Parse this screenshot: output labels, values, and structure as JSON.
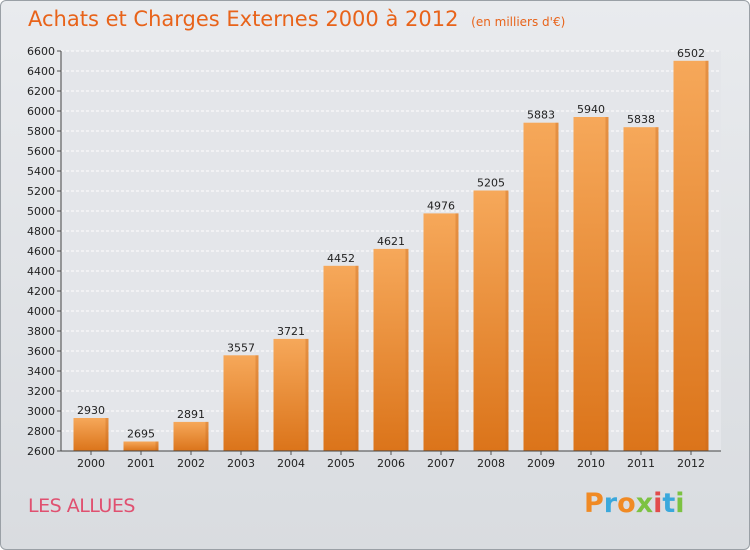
{
  "header": {
    "title": "Achats et Charges Externes 2000 à 2012",
    "unit": "(en milliers d'€)"
  },
  "footer": {
    "commune": "LES ALLUES",
    "logo": [
      "P",
      "r",
      "o",
      "x",
      "i",
      "t",
      "i"
    ],
    "logo_colors": [
      "#f08a24",
      "#3aa8dc",
      "#f08a24",
      "#7cc242",
      "#e24b4b",
      "#3aa8dc",
      "#7cc242"
    ]
  },
  "colors": {
    "bar_top": "#f6a85a",
    "bar_bottom": "#db741a",
    "bar_side": "#c7661c",
    "title": "#e8631a",
    "commune": "#e05070"
  },
  "chart_data": {
    "type": "bar",
    "categories": [
      "2000",
      "2001",
      "2002",
      "2003",
      "2004",
      "2005",
      "2006",
      "2007",
      "2008",
      "2009",
      "2010",
      "2011",
      "2012"
    ],
    "values": [
      2930,
      2695,
      2891,
      3557,
      3721,
      4452,
      4621,
      4976,
      5205,
      5883,
      5940,
      5838,
      6502
    ],
    "title": "Achats et Charges Externes 2000 à 2012",
    "ylim": [
      2600,
      6600
    ],
    "yticks": [
      2600,
      2800,
      3000,
      3200,
      3400,
      3600,
      3800,
      4000,
      4200,
      4400,
      4600,
      4800,
      5000,
      5200,
      5400,
      5600,
      5800,
      6000,
      6200,
      6400,
      6600
    ],
    "grid": true,
    "legend": "none"
  }
}
